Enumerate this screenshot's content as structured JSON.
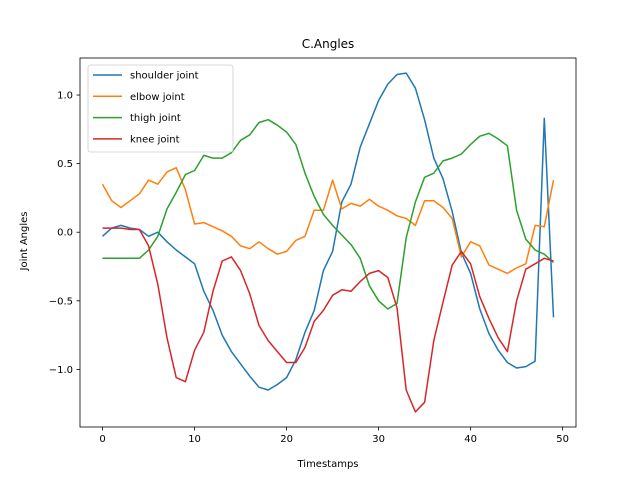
{
  "chart_data": {
    "type": "line",
    "title": "C.Angles",
    "xlabel": "Timestamps",
    "ylabel": "Joint Angles",
    "xlim": [
      -2.45,
      51.45
    ],
    "ylim": [
      -1.42,
      1.27
    ],
    "xticks": [
      0,
      10,
      20,
      30,
      40,
      50
    ],
    "yticks": [
      -1.0,
      -0.5,
      0.0,
      0.5,
      1.0
    ],
    "ytick_labels": [
      "−1.0",
      "−0.5",
      "0.0",
      "0.5",
      "1.0"
    ],
    "grid": false,
    "legend_position": "top-left",
    "x": [
      0,
      1,
      2,
      3,
      4,
      5,
      6,
      7,
      8,
      9,
      10,
      11,
      12,
      13,
      14,
      15,
      16,
      17,
      18,
      19,
      20,
      21,
      22,
      23,
      24,
      25,
      26,
      27,
      28,
      29,
      30,
      31,
      32,
      33,
      34,
      35,
      36,
      37,
      38,
      39,
      40,
      41,
      42,
      43,
      44,
      45,
      46,
      47,
      48,
      49
    ],
    "series": [
      {
        "name": "shoulder joint",
        "color": "#1f77b4",
        "values": [
          -0.03,
          0.03,
          0.05,
          0.03,
          0.02,
          -0.03,
          0.0,
          -0.07,
          -0.13,
          -0.18,
          -0.23,
          -0.43,
          -0.57,
          -0.75,
          -0.87,
          -0.96,
          -1.05,
          -1.13,
          -1.15,
          -1.11,
          -1.06,
          -0.93,
          -0.73,
          -0.57,
          -0.28,
          -0.14,
          0.22,
          0.35,
          0.62,
          0.79,
          0.96,
          1.08,
          1.15,
          1.16,
          1.05,
          0.82,
          0.54,
          0.39,
          0.15,
          -0.15,
          -0.3,
          -0.56,
          -0.74,
          -0.86,
          -0.95,
          -0.99,
          -0.98,
          -0.94,
          0.83,
          -0.62
        ]
      },
      {
        "name": "elbow joint",
        "color": "#ff7f0e",
        "values": [
          0.35,
          0.23,
          0.18,
          0.23,
          0.28,
          0.38,
          0.35,
          0.44,
          0.47,
          0.31,
          0.06,
          0.07,
          0.04,
          0.01,
          -0.03,
          -0.1,
          -0.12,
          -0.07,
          -0.12,
          -0.16,
          -0.14,
          -0.06,
          -0.03,
          0.16,
          0.16,
          0.38,
          0.17,
          0.21,
          0.19,
          0.24,
          0.19,
          0.16,
          0.12,
          0.1,
          0.05,
          0.23,
          0.23,
          0.18,
          0.1,
          -0.18,
          -0.07,
          -0.1,
          -0.24,
          -0.27,
          -0.3,
          -0.26,
          -0.23,
          0.05,
          0.04,
          0.38
        ]
      },
      {
        "name": "thigh joint",
        "color": "#2ca02c",
        "values": [
          -0.19,
          -0.19,
          -0.19,
          -0.19,
          -0.19,
          -0.13,
          -0.03,
          0.17,
          0.29,
          0.42,
          0.45,
          0.56,
          0.54,
          0.54,
          0.58,
          0.67,
          0.71,
          0.8,
          0.82,
          0.78,
          0.73,
          0.64,
          0.43,
          0.26,
          0.13,
          0.05,
          -0.02,
          -0.09,
          -0.19,
          -0.39,
          -0.5,
          -0.56,
          -0.52,
          -0.04,
          0.22,
          0.4,
          0.43,
          0.52,
          0.54,
          0.57,
          0.64,
          0.7,
          0.72,
          0.68,
          0.63,
          0.16,
          -0.05,
          -0.13,
          -0.16,
          -0.22
        ]
      },
      {
        "name": "knee joint",
        "color": "#d62728",
        "values": [
          0.03,
          0.03,
          0.03,
          0.02,
          0.02,
          -0.1,
          -0.38,
          -0.77,
          -1.06,
          -1.09,
          -0.86,
          -0.73,
          -0.43,
          -0.21,
          -0.18,
          -0.28,
          -0.45,
          -0.68,
          -0.79,
          -0.87,
          -0.95,
          -0.95,
          -0.84,
          -0.65,
          -0.57,
          -0.46,
          -0.42,
          -0.43,
          -0.36,
          -0.3,
          -0.28,
          -0.33,
          -0.55,
          -1.15,
          -1.31,
          -1.24,
          -0.79,
          -0.51,
          -0.24,
          -0.14,
          -0.23,
          -0.47,
          -0.63,
          -0.77,
          -0.87,
          -0.5,
          -0.27,
          -0.23,
          -0.19,
          -0.21
        ]
      }
    ]
  }
}
